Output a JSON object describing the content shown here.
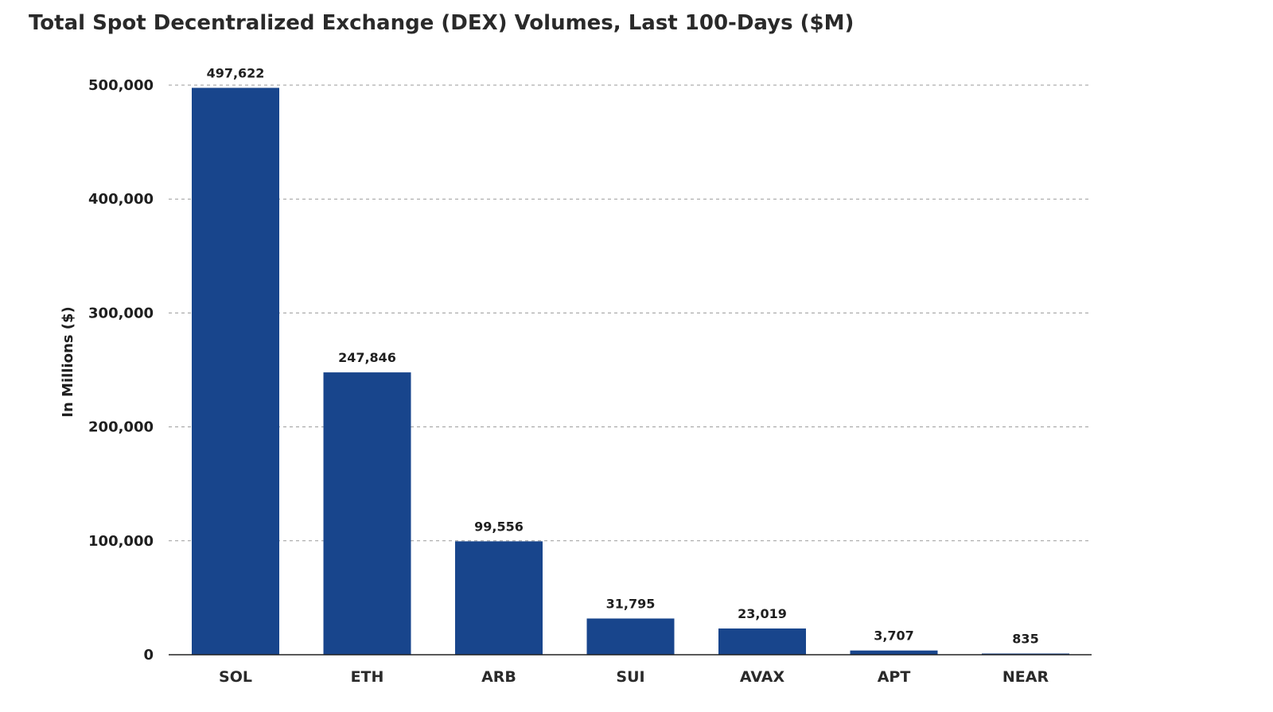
{
  "chart_data": {
    "type": "bar",
    "title": "Total Spot Decentralized Exchange (DEX) Volumes, Last 100-Days ($M)",
    "xlabel": "",
    "ylabel": "In Millions ($)",
    "categories": [
      "SOL",
      "ETH",
      "ARB",
      "SUI",
      "AVAX",
      "APT",
      "NEAR"
    ],
    "values": [
      497622,
      247846,
      99556,
      31795,
      23019,
      3707,
      835
    ],
    "value_labels": [
      "497,622",
      "247,846",
      "99,556",
      "31,795",
      "23,019",
      "3,707",
      "835"
    ],
    "ylim": [
      0,
      500000
    ],
    "yticks": [
      0,
      100000,
      200000,
      300000,
      400000,
      500000
    ],
    "ytick_labels": [
      "0",
      "100,000",
      "200,000",
      "300,000",
      "400,000",
      "500,000"
    ],
    "grid": true,
    "grid_style": "dashed-horizontal",
    "legend": "none",
    "bar_color": "#18458c",
    "grid_color": "#9a9a9a"
  }
}
